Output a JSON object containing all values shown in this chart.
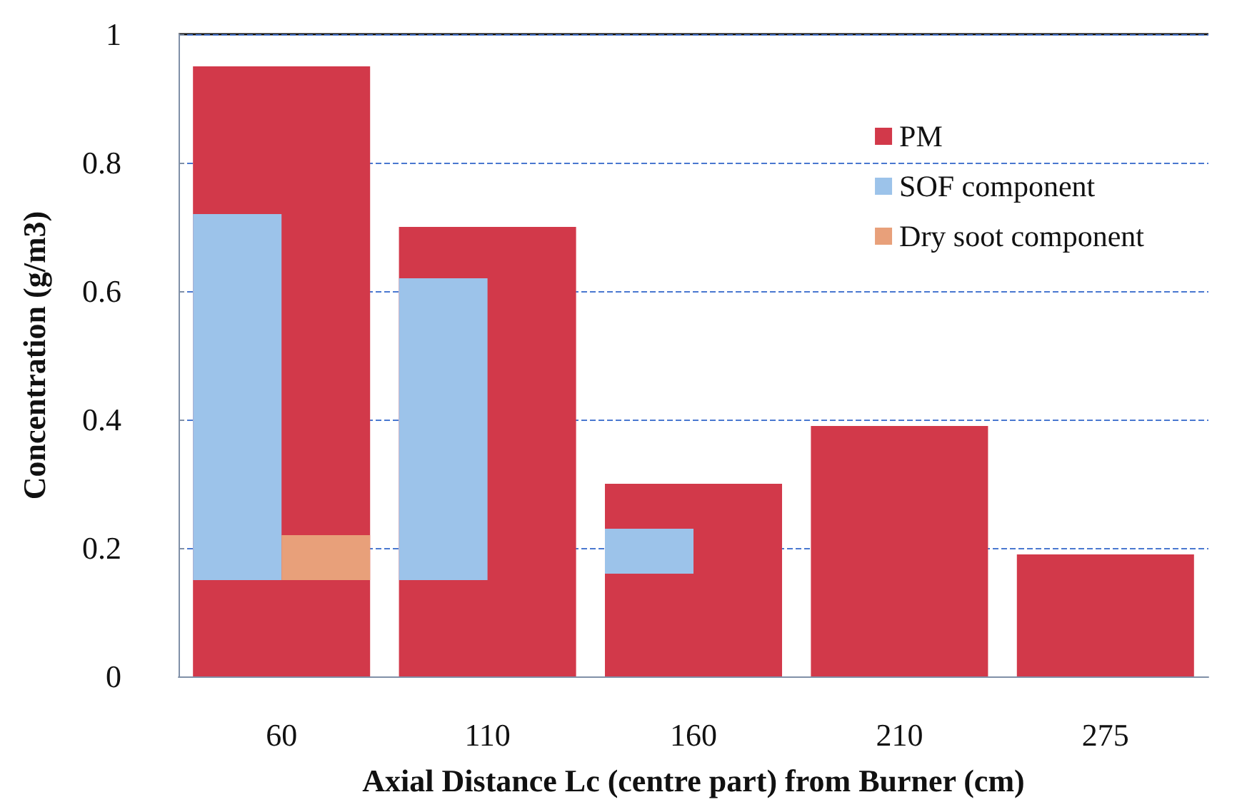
{
  "chart_data": {
    "type": "bar",
    "xlabel": "Axial Distance Lc (centre part) from Burner (cm)",
    "ylabel": "Concentration (g/m3)",
    "categories": [
      "60",
      "110",
      "160",
      "210",
      "275"
    ],
    "series": [
      {
        "name": "PM",
        "color": "#d2394a",
        "values": [
          0.95,
          0.7,
          0.3,
          0.39,
          0.19
        ]
      },
      {
        "name": "SOF component",
        "color": "#9cc3ea",
        "values": [
          0.57,
          0.47,
          0.07,
          null,
          null
        ],
        "base": [
          0.15,
          0.15,
          0.16,
          null,
          null
        ]
      },
      {
        "name": "Dry soot component",
        "color": "#e8a07a",
        "values": [
          0.07,
          null,
          null,
          null,
          null
        ],
        "base": [
          0.15,
          null,
          null,
          null,
          null
        ]
      }
    ],
    "ylim": [
      0,
      1
    ],
    "yticks": [
      0,
      0.2,
      0.4,
      0.6,
      0.8,
      1
    ],
    "grid": "y",
    "legend": "top right"
  }
}
